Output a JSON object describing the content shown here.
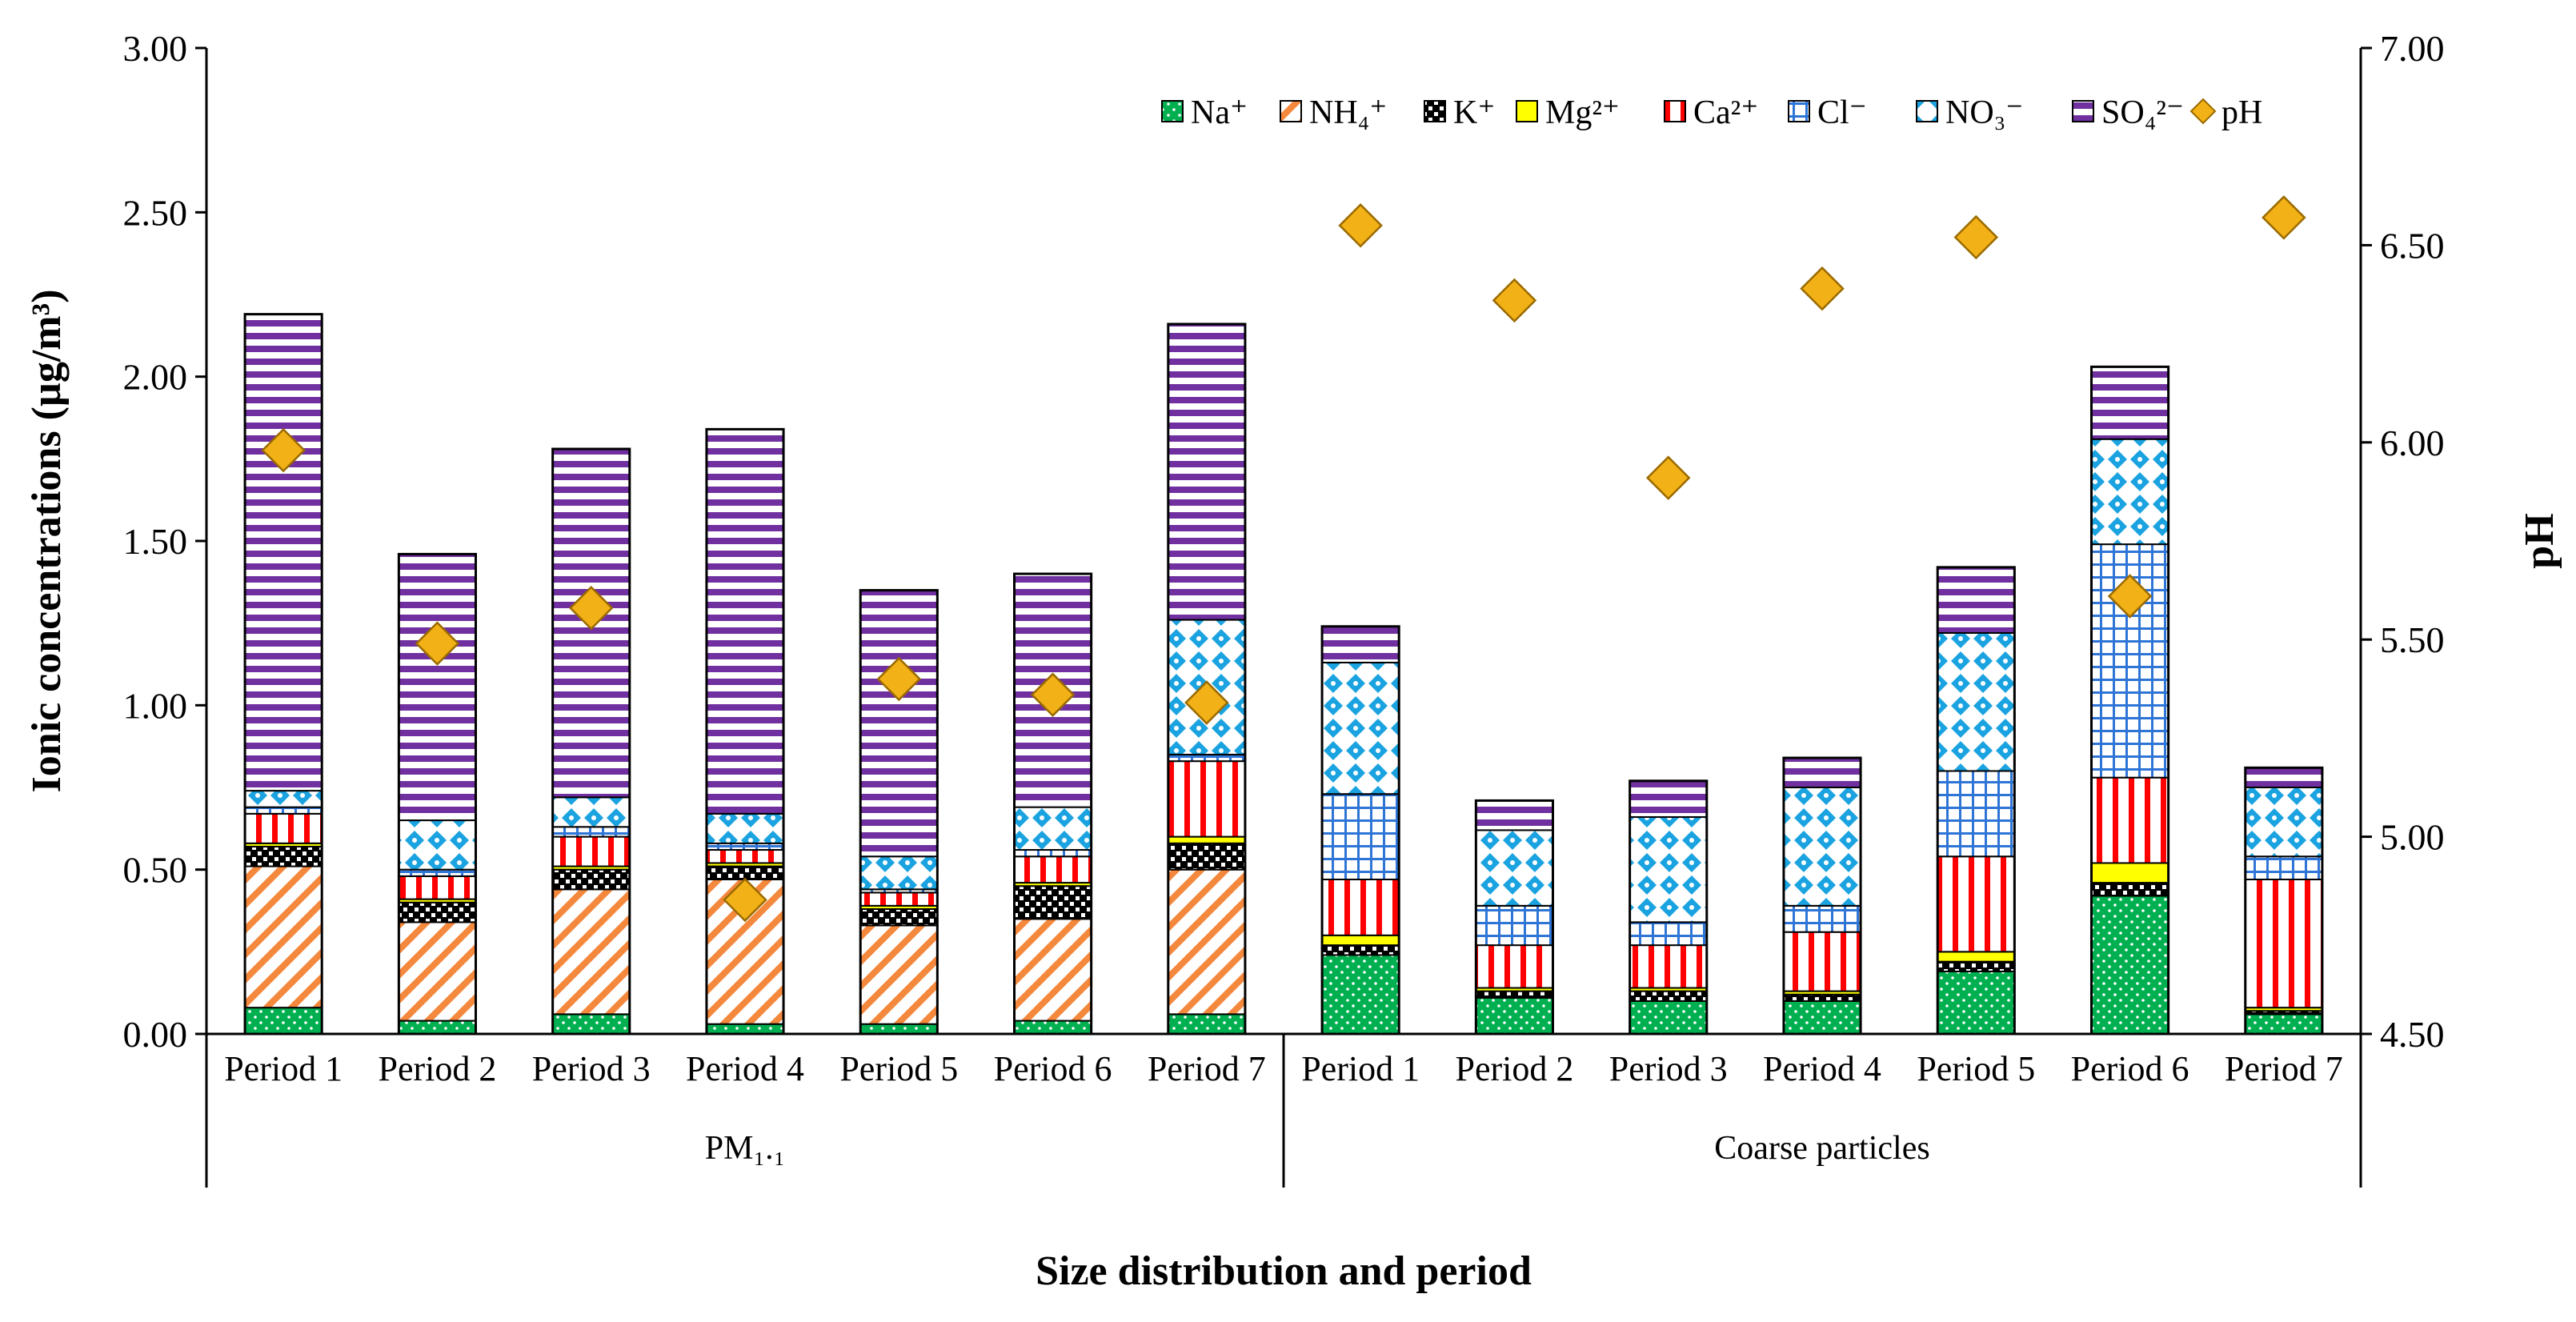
{
  "chart_data": {
    "type": "bar",
    "stacked": true,
    "xlabel": "Size distribution and period",
    "ylabel": "Ionic concentrations (µg/m³)",
    "y2label": "pH",
    "ylim": [
      0,
      3
    ],
    "y2lim": [
      4.5,
      7
    ],
    "yticks": [
      "0.00",
      "0.50",
      "1.00",
      "1.50",
      "2.00",
      "2.50",
      "3.00"
    ],
    "y2ticks": [
      "4.50",
      "5.00",
      "5.50",
      "6.00",
      "6.50",
      "7.00"
    ],
    "groups": [
      {
        "name": "PM₁.₁",
        "categories": [
          "Period 1",
          "Period 2",
          "Period 3",
          "Period 4",
          "Period 5",
          "Period 6",
          "Period 7"
        ]
      },
      {
        "name": "Coarse particles",
        "categories": [
          "Period 1",
          "Period 2",
          "Period 3",
          "Period 4",
          "Period 5",
          "Period 6",
          "Period 7"
        ]
      }
    ],
    "series": [
      {
        "name": "Na⁺",
        "color": "#00b050",
        "pattern": "dots",
        "values": [
          0.08,
          0.04,
          0.06,
          0.03,
          0.03,
          0.04,
          0.06,
          0.24,
          0.11,
          0.1,
          0.1,
          0.19,
          0.42,
          0.06
        ]
      },
      {
        "name": "NH₄⁺",
        "color": "#f4883d",
        "pattern": "diag",
        "values": [
          0.43,
          0.3,
          0.38,
          0.44,
          0.3,
          0.31,
          0.44,
          0,
          0,
          0,
          0,
          0,
          0,
          0
        ]
      },
      {
        "name": "K⁺",
        "color": "#000000",
        "pattern": "checker",
        "values": [
          0.06,
          0.06,
          0.06,
          0.04,
          0.05,
          0.1,
          0.08,
          0.03,
          0.02,
          0.03,
          0.02,
          0.03,
          0.04,
          0.01
        ]
      },
      {
        "name": "Mg²⁺",
        "color": "#ffff00",
        "pattern": "solid",
        "values": [
          0.01,
          0.01,
          0.01,
          0.01,
          0.01,
          0.01,
          0.02,
          0.03,
          0.01,
          0.01,
          0.01,
          0.03,
          0.06,
          0.01
        ]
      },
      {
        "name": "Ca²⁺",
        "color": "#ff0000",
        "pattern": "vert",
        "values": [
          0.09,
          0.07,
          0.09,
          0.04,
          0.04,
          0.08,
          0.23,
          0.17,
          0.13,
          0.13,
          0.18,
          0.29,
          0.26,
          0.39
        ]
      },
      {
        "name": "Cl⁻",
        "color": "#2e75d6",
        "pattern": "grid",
        "values": [
          0.02,
          0.02,
          0.03,
          0.02,
          0.01,
          0.02,
          0.02,
          0.26,
          0.12,
          0.07,
          0.08,
          0.26,
          0.71,
          0.07
        ]
      },
      {
        "name": "NO₃⁻",
        "color": "#1aa3e0",
        "pattern": "diamond",
        "values": [
          0.05,
          0.15,
          0.09,
          0.09,
          0.1,
          0.13,
          0.41,
          0.4,
          0.23,
          0.32,
          0.36,
          0.42,
          0.32,
          0.21
        ]
      },
      {
        "name": "SO₄²⁻",
        "color": "#7030a0",
        "pattern": "horiz",
        "values": [
          1.45,
          0.81,
          1.06,
          1.17,
          0.81,
          0.71,
          0.9,
          0.11,
          0.09,
          0.11,
          0.09,
          0.2,
          0.22,
          0.06
        ]
      }
    ],
    "ph_series": {
      "name": "pH",
      "color": "#f2b217",
      "values": [
        5.98,
        5.49,
        5.58,
        4.84,
        5.4,
        5.36,
        5.34,
        6.55,
        6.36,
        5.91,
        6.39,
        6.52,
        5.61,
        6.57
      ]
    },
    "legend_position": "top-right"
  }
}
